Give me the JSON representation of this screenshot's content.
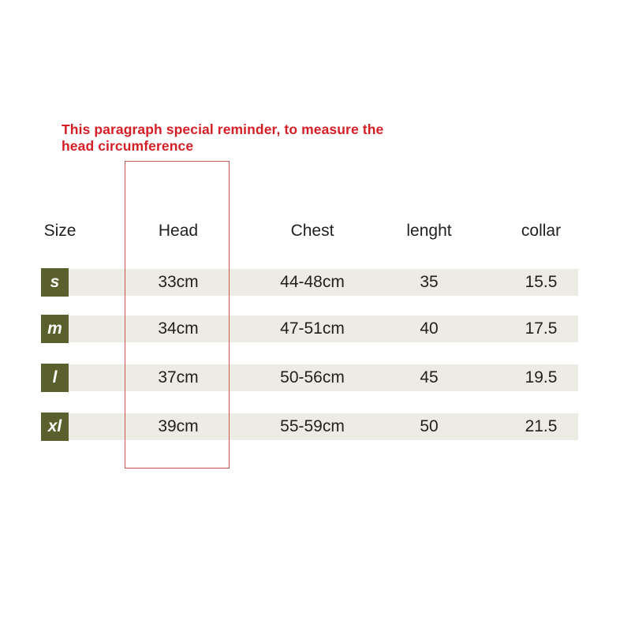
{
  "chart_data": {
    "type": "table",
    "title": "",
    "annotation": "This paragraph special reminder, to measure the head circumference",
    "highlighted_column": "Head",
    "columns": [
      "Size",
      "Head",
      "Chest",
      "lenght",
      "collar"
    ],
    "rows": [
      [
        "s",
        "33cm",
        "44-48cm",
        "35",
        "15.5"
      ],
      [
        "m",
        "34cm",
        "47-51cm",
        "40",
        "17.5"
      ],
      [
        "l",
        "37cm",
        "50-56cm",
        "45",
        "19.5"
      ],
      [
        "xl",
        "39cm",
        "55-59cm",
        "50",
        "21.5"
      ]
    ],
    "units": {
      "head": "cm",
      "chest": "cm",
      "lenght": "",
      "collar": ""
    },
    "layout_hints": {
      "row_stripe_color": "#ecebe4",
      "badge_color": "#59602e",
      "reminder_text_color": "#d41f26",
      "highlight_box_border_color": "#c4584e",
      "background": "#ffffff"
    }
  }
}
